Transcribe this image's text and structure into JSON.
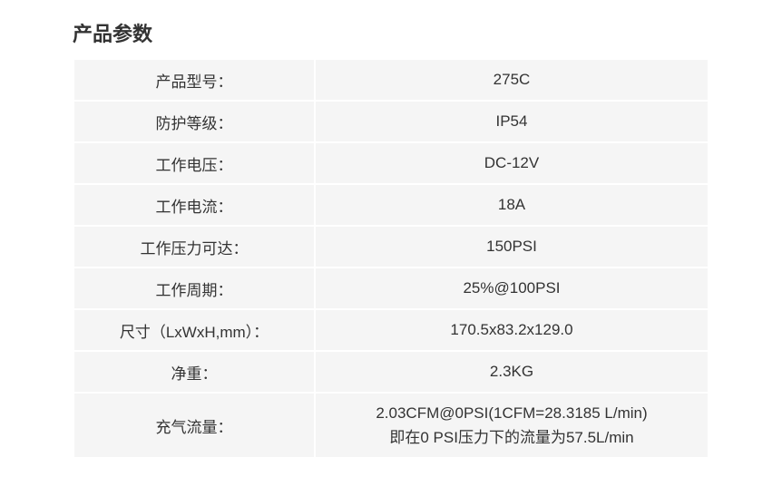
{
  "title": "产品参数",
  "rows": [
    {
      "label": "产品型号：",
      "value": "275C",
      "tall": false
    },
    {
      "label": "防护等级：",
      "value": "IP54",
      "tall": false
    },
    {
      "label": "工作电压：",
      "value": "DC-12V",
      "tall": false
    },
    {
      "label": "工作电流：",
      "value": "18A",
      "tall": false
    },
    {
      "label": "工作压力可达：",
      "value": "150PSI",
      "tall": false
    },
    {
      "label": "工作周期：",
      "value": "25%@100PSI",
      "tall": false
    },
    {
      "label": "尺寸（LxWxH,mm）：",
      "value": "170.5x83.2x129.0",
      "tall": false
    },
    {
      "label": "净重：",
      "value": "2.3KG",
      "tall": false
    },
    {
      "label": "充气流量：",
      "value": "2.03CFM@0PSI(1CFM=28.3185 L/min)\n即在0 PSI压力下的流量为57.5L/min",
      "tall": true
    }
  ],
  "colors": {
    "background": "#ffffff",
    "cell_bg": "#f5f5f5",
    "cell_border": "#ffffff",
    "text": "#333333"
  },
  "typography": {
    "title_fontsize": 22,
    "cell_fontsize": 17,
    "title_weight": "bold"
  }
}
